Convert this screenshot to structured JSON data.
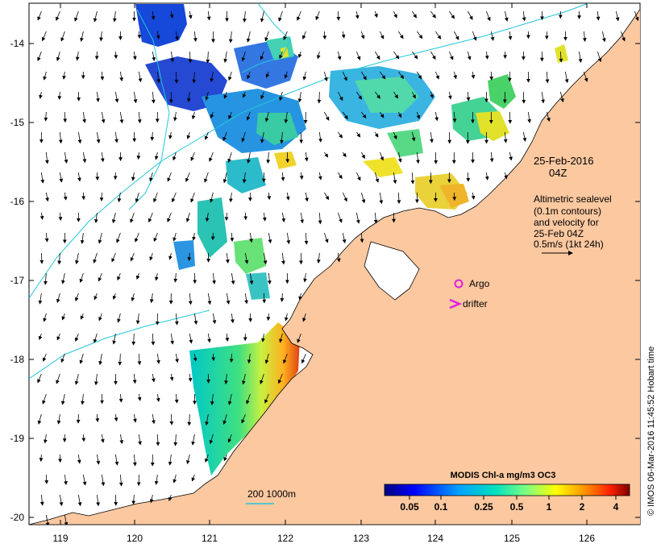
{
  "map": {
    "lon_ticks": [
      "119",
      "120",
      "121",
      "122",
      "123",
      "124",
      "125",
      "126"
    ],
    "lat_ticks": [
      "-14",
      "-15",
      "-16",
      "-17",
      "-18",
      "-19",
      "-20"
    ],
    "colors": {
      "land": "#fbc8a0",
      "ocean": "#ffffff",
      "contour": "#23c6dc",
      "coast": "#000000",
      "argo": "#e020e0",
      "drifter": "#e020e0"
    }
  },
  "annotations": {
    "date_line1": "25-Feb-2016",
    "date_line2": "04Z",
    "altimetry_line1": "Altimetric sealevel",
    "altimetry_line2": "(0.1m contours)",
    "altimetry_line3": "and velocity for",
    "altimetry_line4": "25-Feb 04Z",
    "velocity_scale": "0.5m/s (1kt 24h)",
    "argo_label": "Argo",
    "drifter_label": "drifter",
    "depth_contours": "200  1000m"
  },
  "colorbar": {
    "title": "MODIS Chl-a mg/m3 OC3",
    "ticks": [
      "0.05",
      "0.1",
      "0.25",
      "0.5",
      "1",
      "2",
      "4"
    ],
    "colors": [
      "#00007f",
      "#0040ff",
      "#00c0ff",
      "#40ffc0",
      "#c0ff40",
      "#ffc000",
      "#ff4000",
      "#7f0000"
    ]
  },
  "credit": "© IMOS 06-Mar-2016 11:45:52 Hobart time"
}
